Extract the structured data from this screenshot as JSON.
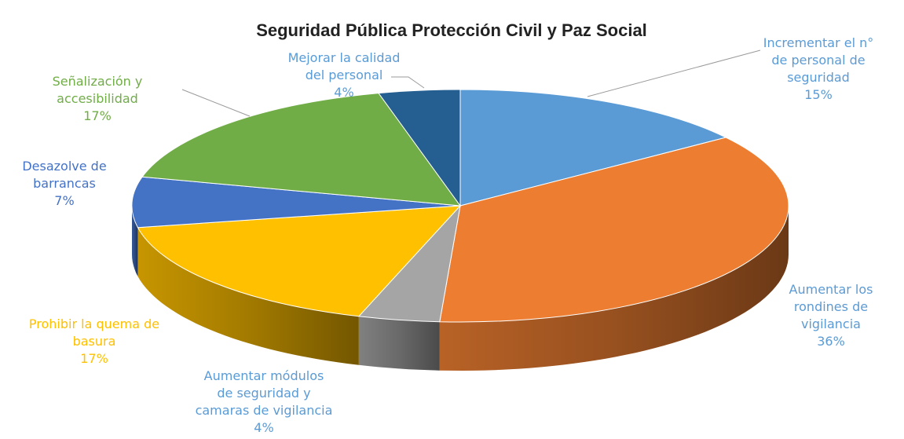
{
  "chart_data": {
    "type": "pie",
    "title": "Seguridad Pública Protección Civil y Paz Social",
    "slices": [
      {
        "lines": [
          "Incrementar el n°",
          "de personal de",
          "seguridad"
        ],
        "value_label": "15%",
        "value": 15,
        "color": "#5b9bd5",
        "label_color": "#5b9bd5"
      },
      {
        "lines": [
          "Aumentar los",
          "rondines de",
          "vigilancia"
        ],
        "value_label": "36%",
        "value": 36,
        "color": "#ed7d31",
        "label_color": "#5b9bd5"
      },
      {
        "lines": [
          "Aumentar módulos",
          "de seguridad y",
          "camaras de vigilancia"
        ],
        "value_label": "4%",
        "value": 4,
        "color": "#a5a5a5",
        "label_color": "#5b9bd5"
      },
      {
        "lines": [
          "Prohibir la quema de",
          "basura"
        ],
        "value_label": "17%",
        "value": 17,
        "color": "#ffc000",
        "label_color": "#ffc000"
      },
      {
        "lines": [
          "Desazolve de",
          "barrancas"
        ],
        "value_label": "7%",
        "value": 7,
        "color": "#4472c4",
        "label_color": "#4472c4"
      },
      {
        "lines": [
          "Señalización y",
          "accesibilidad"
        ],
        "value_label": "17%",
        "value": 17,
        "color": "#70ad47",
        "label_color": "#70ad47"
      },
      {
        "lines": [
          "Mejorar la calidad",
          "del personal"
        ],
        "value_label": "4%",
        "value": 4,
        "color": "#255e91",
        "label_color": "#5b9bd5"
      }
    ],
    "unit": "%",
    "legend": "none",
    "grid": false
  }
}
